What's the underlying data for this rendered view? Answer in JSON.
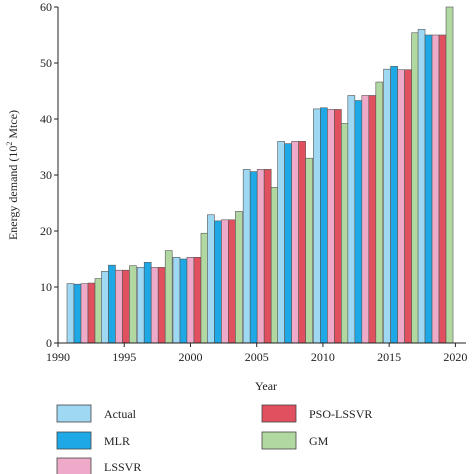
{
  "chart_data": {
    "type": "bar",
    "xlabel": "Year",
    "ylabel_main": "Energy demand (10",
    "ylabel_sup": "2",
    "ylabel_tail": " Mtce)",
    "xlim": [
      1990,
      2020.8
    ],
    "ylim": [
      0,
      60
    ],
    "x_ticks": [
      "1990",
      "1995",
      "2000",
      "2005",
      "2010",
      "2015",
      "2020"
    ],
    "y_ticks": [
      "0",
      "10",
      "20",
      "30",
      "40",
      "50",
      "60"
    ],
    "categories": [
      1992,
      1994.6,
      1997.3,
      2000,
      2002.6,
      2005.3,
      2007.9,
      2010.6,
      2013.2,
      2015.9,
      2018.5
    ],
    "series": [
      {
        "name": "Actual",
        "color": "#9fd8f2",
        "values": [
          10.6,
          12.8,
          13.5,
          15.3,
          22.9,
          31.0,
          36.0,
          41.8,
          44.2,
          48.9,
          56.0
        ]
      },
      {
        "name": "MLR",
        "color": "#1ea8e6",
        "values": [
          10.5,
          13.9,
          14.4,
          15.0,
          21.8,
          30.6,
          35.6,
          42.0,
          43.3,
          49.4,
          55.0
        ]
      },
      {
        "name": "LSSVR",
        "color": "#eeaac8",
        "values": [
          10.6,
          13.0,
          13.5,
          15.3,
          22.0,
          31.0,
          36.0,
          41.7,
          44.2,
          48.8,
          55.0
        ]
      },
      {
        "name": "PSO-LSSVR",
        "color": "#e0505e",
        "values": [
          10.7,
          13.0,
          13.5,
          15.3,
          22.0,
          31.0,
          36.0,
          41.7,
          44.2,
          48.8,
          55.0
        ]
      },
      {
        "name": "GM",
        "color": "#b2d8a2",
        "values": [
          11.5,
          13.8,
          16.5,
          19.6,
          23.5,
          27.8,
          33.0,
          39.2,
          46.6,
          55.4,
          65.0
        ]
      }
    ],
    "legend_position": "bottom",
    "grid": false
  }
}
